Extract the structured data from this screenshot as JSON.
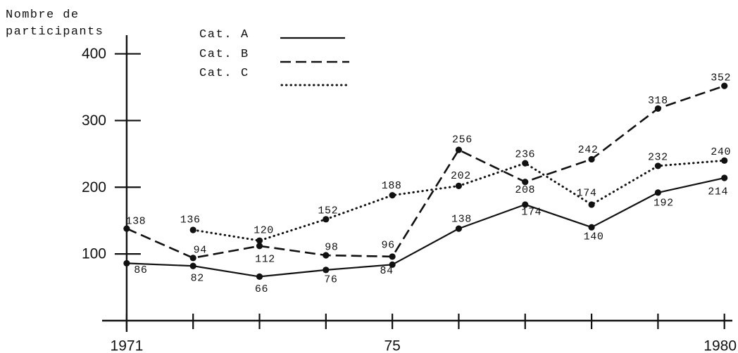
{
  "chart_data": {
    "type": "line",
    "title": "",
    "xlabel": "",
    "ylabel": [
      "Nombre de",
      "participants"
    ],
    "x": [
      1971,
      1972,
      1973,
      1974,
      1975,
      1976,
      1977,
      1978,
      1979,
      1980
    ],
    "x_ticks": [
      1971,
      1972,
      1973,
      1974,
      1975,
      1976,
      1977,
      1978,
      1979,
      1980
    ],
    "x_tick_labels": [
      {
        "x": 1971,
        "label": "1971"
      },
      {
        "x": 1975,
        "label": "75"
      },
      {
        "x": 1980,
        "label": "1980"
      }
    ],
    "y_ticks": [
      100,
      200,
      300,
      400
    ],
    "xlim": [
      1970.63,
      1980.12
    ],
    "ylim": [
      0,
      428
    ],
    "grid": false,
    "legend": "top-left",
    "data_labels": true,
    "series": [
      {
        "name": "Cat. A",
        "line_style": "solid",
        "color": "#111111",
        "values": [
          86,
          82,
          66,
          76,
          84,
          138,
          174,
          140,
          192,
          214
        ]
      },
      {
        "name": "Cat. B",
        "line_style": "dashed",
        "color": "#111111",
        "values": [
          138,
          94,
          112,
          98,
          96,
          256,
          208,
          242,
          318,
          352
        ]
      },
      {
        "name": "Cat. C",
        "line_style": "dotted",
        "color": "#111111",
        "values": [
          null,
          136,
          120,
          152,
          188,
          202,
          236,
          174,
          232,
          240
        ]
      }
    ]
  }
}
